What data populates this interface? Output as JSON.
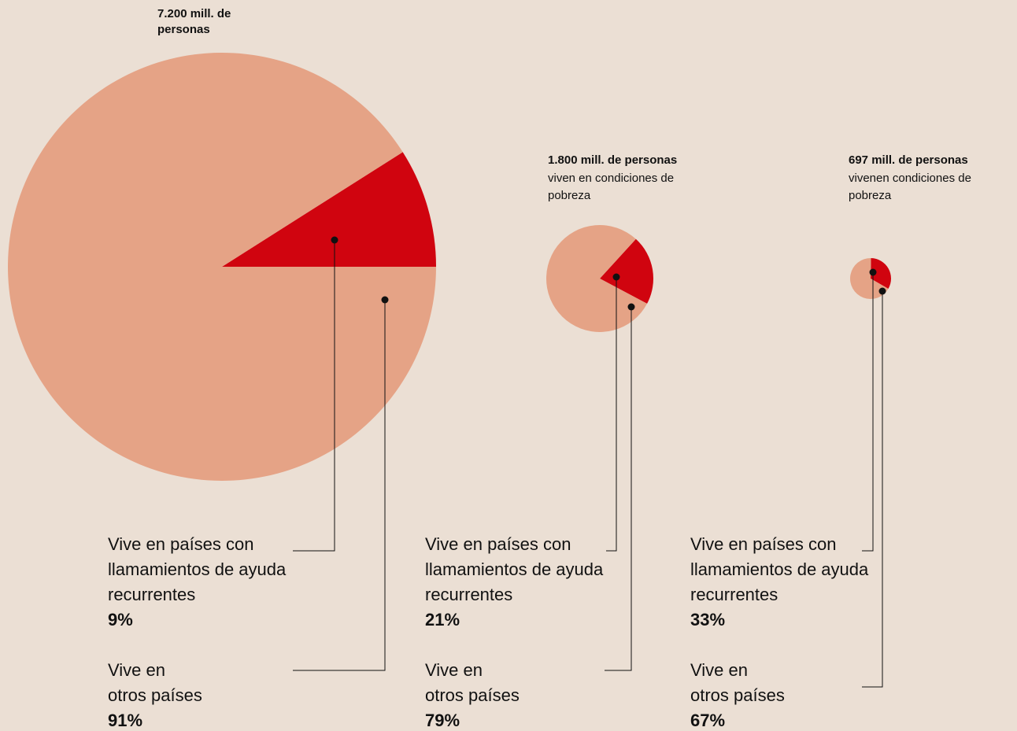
{
  "chart_data": [
    {
      "type": "pie",
      "title": "7.200 mill. de personas",
      "categories": [
        "Vive en países con llamamientos de ayuda recurrentes",
        "Vive en otros países"
      ],
      "values": [
        9,
        91
      ],
      "value_labels": [
        "9%",
        "91%"
      ],
      "colors": [
        "#d0040f",
        "#e5a386"
      ]
    },
    {
      "type": "pie",
      "title": "1.800 mill. de personas",
      "subtitle": "viven en condiciones de pobreza",
      "categories": [
        "Vive en países con llamamientos de ayuda recurrentes",
        "Vive en otros países"
      ],
      "values": [
        21,
        79
      ],
      "value_labels": [
        "21%",
        "79%"
      ],
      "colors": [
        "#d0040f",
        "#e5a386"
      ]
    },
    {
      "type": "pie",
      "title": "697 mill. de personas",
      "subtitle": "vivenen condiciones de pobreza",
      "categories": [
        "Vive en países con llamamientos de ayuda recurrentes",
        "Vive en otros países"
      ],
      "values": [
        33,
        67
      ],
      "value_labels": [
        "33%",
        "67%"
      ],
      "colors": [
        "#d0040f",
        "#e5a386"
      ]
    }
  ]
}
